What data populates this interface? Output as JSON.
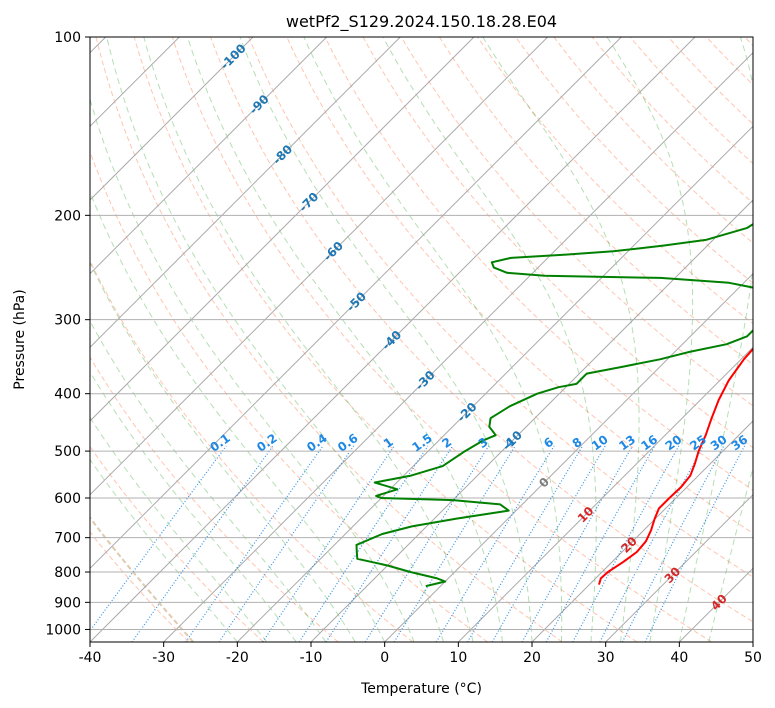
{
  "chart_data": {
    "type": "line",
    "subtype": "skew-t log-p diagram",
    "title": "wetPf2_S129.2024.150.18.28.E04",
    "xlabel": "Temperature (°C)",
    "ylabel": "Pressure (hPa)",
    "xlim": [
      -40,
      50
    ],
    "ylim_hpa": [
      1050,
      100
    ],
    "y_scale": "log",
    "x_ticks": [
      -40,
      -30,
      -20,
      -10,
      0,
      10,
      20,
      30,
      40,
      50
    ],
    "y_ticks": [
      100,
      200,
      300,
      400,
      500,
      600,
      700,
      800,
      900,
      1000
    ],
    "grid": true,
    "colors": {
      "temperature": "#ff0000",
      "dewpoint": "#008000",
      "isotherm": "#aaaaaa",
      "dry_adiabat": "#ff7f50",
      "moist_adiabat": "#2ca02c",
      "mixing_ratio": "#1e88e5",
      "isotherm_label": "#1f77b4",
      "warm_label": "#d62728",
      "zero_label": "#808080",
      "ice_curve": "#d2b48c"
    },
    "series": [
      {
        "kind": "temperature",
        "points_T_P": [
          [
            21.3,
            840
          ],
          [
            20.7,
            820
          ],
          [
            20.8,
            800
          ],
          [
            21.5,
            770
          ],
          [
            22.0,
            740
          ],
          [
            21.8,
            710
          ],
          [
            21.0,
            680
          ],
          [
            19.9,
            650
          ],
          [
            19.1,
            625
          ],
          [
            19.1,
            600
          ],
          [
            19.2,
            575
          ],
          [
            18.9,
            550
          ],
          [
            17.9,
            525
          ],
          [
            16.7,
            500
          ],
          [
            15.5,
            470
          ],
          [
            14.0,
            440
          ],
          [
            12.5,
            410
          ],
          [
            11.2,
            380
          ],
          [
            10.4,
            350
          ],
          [
            10.0,
            320
          ],
          [
            9.4,
            290
          ],
          [
            8.0,
            270
          ],
          [
            6.5,
            250
          ],
          [
            4.9,
            232
          ],
          [
            3.0,
            215
          ],
          [
            0.2,
            200
          ],
          [
            -3.2,
            185
          ],
          [
            -6.2,
            170
          ],
          [
            -9.3,
            155
          ],
          [
            -12.8,
            140
          ],
          [
            -16.8,
            127
          ],
          [
            -20.0,
            120
          ],
          [
            -21.5,
            112
          ],
          [
            -22.2,
            105
          ],
          [
            -22.9,
            100
          ]
        ]
      },
      {
        "kind": "dewpoint",
        "points_T_P": [
          [
            -2,
            845
          ],
          [
            0,
            830
          ],
          [
            -1.5,
            820
          ],
          [
            -6,
            800
          ],
          [
            -10,
            780
          ],
          [
            -15,
            760
          ],
          [
            -16,
            740
          ],
          [
            -17,
            720
          ],
          [
            -15,
            690
          ],
          [
            -12,
            670
          ],
          [
            -7,
            650
          ],
          [
            -1,
            630
          ],
          [
            -3,
            615
          ],
          [
            -10,
            605
          ],
          [
            -20,
            600
          ],
          [
            -21,
            595
          ],
          [
            -19,
            580
          ],
          [
            -23,
            565
          ],
          [
            -19,
            550
          ],
          [
            -16,
            530
          ],
          [
            -15,
            500
          ],
          [
            -14,
            480
          ],
          [
            -13,
            470
          ],
          [
            -15,
            455
          ],
          [
            -16,
            440
          ],
          [
            -15,
            420
          ],
          [
            -13,
            400
          ],
          [
            -11,
            390
          ],
          [
            -9,
            385
          ],
          [
            -9,
            370
          ],
          [
            -5,
            360
          ],
          [
            -1,
            350
          ],
          [
            2,
            340
          ],
          [
            6,
            330
          ],
          [
            7.7,
            320
          ],
          [
            7.7,
            310
          ],
          [
            7.2,
            300
          ],
          [
            6.6,
            290
          ],
          [
            6.7,
            280
          ],
          [
            6,
            270
          ],
          [
            -2,
            260
          ],
          [
            -12,
            255
          ],
          [
            -28,
            253
          ],
          [
            -33.5,
            250
          ],
          [
            -36,
            245
          ],
          [
            -37,
            240
          ],
          [
            -35,
            236
          ],
          [
            -28,
            233
          ],
          [
            -22,
            230
          ],
          [
            -16,
            225
          ],
          [
            -11,
            220
          ],
          [
            -7,
            210
          ],
          [
            -6,
            200
          ],
          [
            -7,
            195
          ],
          [
            -9,
            185
          ],
          [
            -9,
            178
          ],
          [
            -6,
            170
          ],
          [
            -4,
            160
          ],
          [
            -4,
            150
          ],
          [
            -4,
            135
          ],
          [
            -3,
            125
          ],
          [
            -2,
            120
          ],
          [
            0,
            115
          ],
          [
            1,
            110
          ],
          [
            2,
            105
          ],
          [
            3,
            100
          ]
        ]
      }
    ],
    "isotherm_labels": [
      "-100",
      "-90",
      "-80",
      "-70",
      "-60",
      "-50",
      "-40",
      "-30",
      "-20",
      "-10",
      "0",
      "10",
      "20",
      "30",
      "40"
    ],
    "mixing_ratio_labels": [
      "0.1",
      "0.2",
      "0.4",
      "0.6",
      "1",
      "1.5",
      "2",
      "3",
      "4",
      "6",
      "8",
      "10",
      "13",
      "16",
      "20",
      "25",
      "30",
      "36"
    ]
  }
}
